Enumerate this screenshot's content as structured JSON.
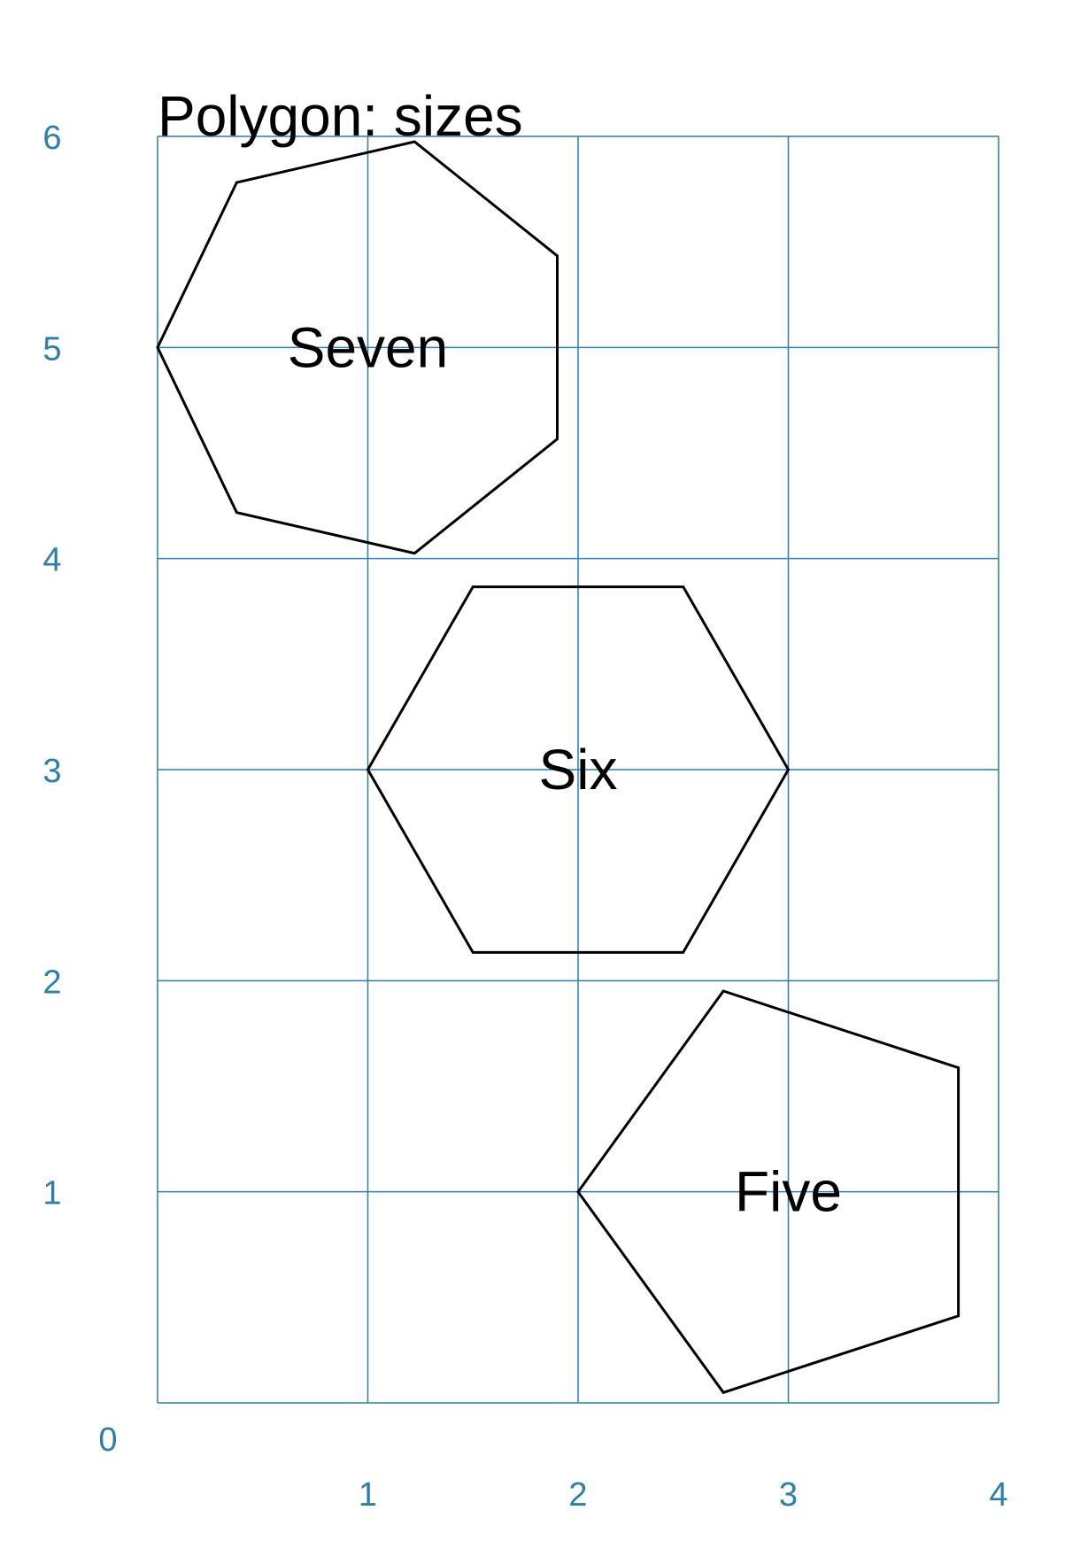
{
  "title": "Polygon: sizes",
  "axes": {
    "x_ticks": [
      "0",
      "1",
      "2",
      "3",
      "4"
    ],
    "y_ticks": [
      "0",
      "1",
      "2",
      "3",
      "4",
      "5",
      "6"
    ],
    "xlim": [
      0,
      4
    ],
    "ylim": [
      0,
      6
    ],
    "grid": true
  },
  "colors": {
    "grid": "#2E7FA6",
    "shape_stroke": "#000000",
    "text": "#000000"
  },
  "polygons": [
    {
      "label": "Seven",
      "sides": 7,
      "center": [
        1,
        5
      ],
      "radius": 1.0
    },
    {
      "label": "Six",
      "sides": 6,
      "center": [
        2,
        3
      ],
      "radius": 1.0
    },
    {
      "label": "Five",
      "sides": 5,
      "center": [
        3,
        1
      ],
      "radius": 1.0
    }
  ]
}
